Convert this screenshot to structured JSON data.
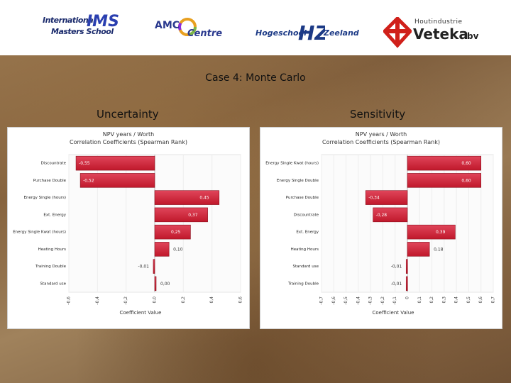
{
  "logos": {
    "ims": {
      "line1": "International",
      "line2": "Masters School",
      "mark": "IMS"
    },
    "amc": {
      "text1": "AMC",
      "text2": "Centre"
    },
    "hz": {
      "text1": "Hogeschool",
      "mark": "HZ",
      "text2": "Zeeland"
    },
    "veteka": {
      "small": "Houtindustrie",
      "name": "Veteka",
      "suffix": "bv"
    }
  },
  "slide": {
    "title": "Case 4: Monte Carlo",
    "left_label": "Uncertainty",
    "right_label": "Sensitivity"
  },
  "colors": {
    "bar": "#c0182b",
    "bar_highlight": "#e0455a",
    "bar_edge": "#8a0f1d"
  },
  "chart_data": [
    {
      "type": "bar",
      "orientation": "horizontal",
      "title": "NPV years / Worth",
      "subtitle": "Correlation Coefficients (Spearman Rank)",
      "xlabel": "Coefficient Value",
      "xlim": [
        -0.6,
        0.6
      ],
      "ticks": [
        "-0,6",
        "-0,4",
        "-0,2",
        "0,0",
        "0,2",
        "0,4",
        "0,6"
      ],
      "categories": [
        "Discountrate",
        "Purchase Double",
        "Energy Single (hours)",
        "Ext. Energy",
        "Energy Single Kwat (hours)",
        "Heating Hours",
        "Training Double",
        "Standard use"
      ],
      "values": [
        -0.55,
        -0.52,
        0.45,
        0.37,
        0.25,
        0.1,
        -0.01,
        0.0
      ],
      "labels": [
        "-0,55",
        "-0,52",
        "0,45",
        "0,37",
        "0,25",
        "0,10",
        "-0,01",
        "0,00"
      ]
    },
    {
      "type": "bar",
      "orientation": "horizontal",
      "title": "NPV years / Worth",
      "subtitle": "Correlation Coefficients (Spearman Rank)",
      "xlabel": "Coefficient Value",
      "xlim": [
        -0.7,
        0.7
      ],
      "ticks": [
        "-0,7",
        "-0,6",
        "-0,5",
        "-0,4",
        "-0,3",
        "-0,2",
        "-0,1",
        "0",
        "0,1",
        "0,2",
        "0,3",
        "0,4",
        "0,5",
        "0,6",
        "0,7"
      ],
      "categories": [
        "Energy Single Kwat (hours)",
        "Energy Single Double",
        "Purchase Double",
        "Discountrate",
        "Ext. Energy",
        "Heating Hours",
        "Standard use",
        "Training Double"
      ],
      "values": [
        0.6,
        0.6,
        -0.34,
        -0.28,
        0.39,
        0.18,
        -0.01,
        -0.01
      ],
      "labels": [
        "0,60",
        "0,60",
        "-0,34",
        "-0,28",
        "0,39",
        "0,18",
        "-0,01",
        "-0,01"
      ]
    }
  ]
}
